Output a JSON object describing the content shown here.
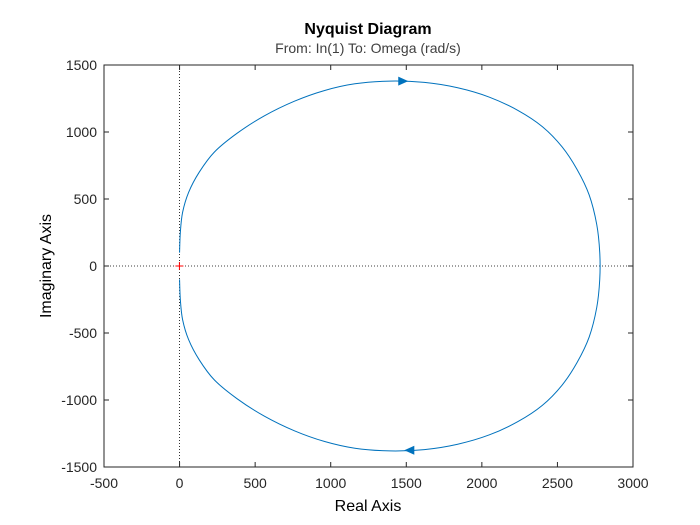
{
  "chart_data": {
    "type": "line",
    "title": "Nyquist Diagram",
    "subtitle": "From: In(1)  To: Omega (rad/s)",
    "xlabel": "Real Axis",
    "ylabel": "Imaginary Axis",
    "xlim": [
      -500,
      3000
    ],
    "ylim": [
      -1500,
      1500
    ],
    "xticks": [
      -500,
      0,
      500,
      1000,
      1500,
      2000,
      2500,
      3000
    ],
    "yticks": [
      -1500,
      -1000,
      -500,
      0,
      500,
      1000,
      1500
    ],
    "xtick_labels": [
      "-500",
      "0",
      "500",
      "1000",
      "1500",
      "2000",
      "2500",
      "3000"
    ],
    "ytick_labels": [
      "-1500",
      "-1000",
      "-500",
      "0",
      "500",
      "1000",
      "1500"
    ],
    "grid": false,
    "colors": {
      "series": "#0072bd",
      "zero_lines": "#000000",
      "critical_point": "#ff0000"
    },
    "critical_point": {
      "x": -1,
      "y": 0
    },
    "series": [
      {
        "x": [
          0,
          5,
          20,
          60,
          130,
          230,
          380,
          560,
          760,
          960,
          1160,
          1390,
          1620,
          1840,
          2050,
          2240,
          2400,
          2530,
          2630,
          2710,
          2760,
          2780,
          2780,
          2760,
          2710,
          2630,
          2530,
          2400,
          2240,
          2050,
          1840,
          1620,
          1390,
          1160,
          960,
          760,
          560,
          380,
          230,
          130,
          60,
          20,
          5,
          0
        ],
        "y": [
          -100,
          -250,
          -400,
          -550,
          -700,
          -850,
          -990,
          -1120,
          -1230,
          -1310,
          -1360,
          -1380,
          -1370,
          -1330,
          -1260,
          -1160,
          -1040,
          -890,
          -720,
          -530,
          -310,
          -100,
          100,
          310,
          530,
          720,
          890,
          1040,
          1160,
          1260,
          1330,
          1370,
          1380,
          1360,
          1310,
          1230,
          1120,
          990,
          850,
          700,
          550,
          400,
          250,
          100
        ]
      }
    ],
    "arrows": [
      {
        "x": 1480,
        "y": 1380,
        "direction": "right"
      },
      {
        "x": 1520,
        "y": -1375,
        "direction": "left"
      }
    ]
  }
}
